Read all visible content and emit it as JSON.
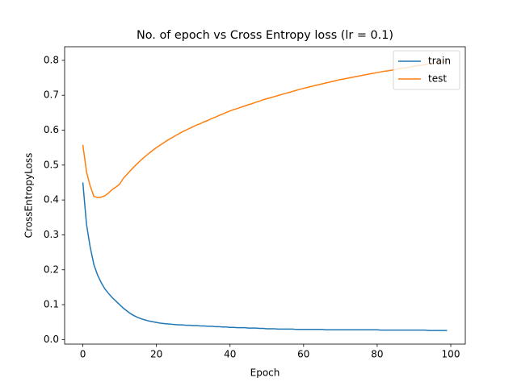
{
  "chart_data": {
    "type": "line",
    "title": "No. of epoch vs Cross Entropy loss (lr = 0.1)",
    "x_label": "Epoch",
    "y_label": "CrossEntropyLoss",
    "x": [
      0,
      1,
      2,
      3,
      4,
      5,
      6,
      7,
      8,
      9,
      10,
      11,
      12,
      13,
      14,
      15,
      16,
      17,
      18,
      19,
      20,
      21,
      22,
      23,
      24,
      25,
      26,
      27,
      28,
      29,
      30,
      31,
      32,
      33,
      34,
      35,
      36,
      37,
      38,
      39,
      40,
      41,
      42,
      43,
      44,
      45,
      46,
      47,
      48,
      49,
      50,
      51,
      52,
      53,
      54,
      55,
      56,
      57,
      58,
      59,
      60,
      61,
      62,
      63,
      64,
      65,
      66,
      67,
      68,
      69,
      70,
      71,
      72,
      73,
      74,
      75,
      76,
      77,
      78,
      79,
      80,
      81,
      82,
      83,
      84,
      85,
      86,
      87,
      88,
      89,
      90,
      91,
      92,
      93,
      94,
      95,
      96,
      97,
      98,
      99
    ],
    "series": [
      {
        "name": "train",
        "color": "#1f77b4",
        "values": [
          0.45,
          0.33,
          0.265,
          0.215,
          0.185,
          0.163,
          0.145,
          0.132,
          0.12,
          0.11,
          0.1,
          0.09,
          0.082,
          0.074,
          0.068,
          0.063,
          0.059,
          0.056,
          0.053,
          0.051,
          0.049,
          0.047,
          0.046,
          0.045,
          0.044,
          0.043,
          0.042,
          0.042,
          0.041,
          0.041,
          0.04,
          0.04,
          0.039,
          0.039,
          0.038,
          0.038,
          0.037,
          0.037,
          0.036,
          0.036,
          0.035,
          0.035,
          0.034,
          0.034,
          0.034,
          0.033,
          0.033,
          0.033,
          0.032,
          0.032,
          0.031,
          0.031,
          0.031,
          0.03,
          0.03,
          0.03,
          0.03,
          0.03,
          0.029,
          0.029,
          0.029,
          0.029,
          0.029,
          0.029,
          0.029,
          0.029,
          0.028,
          0.028,
          0.028,
          0.028,
          0.028,
          0.028,
          0.028,
          0.028,
          0.028,
          0.028,
          0.028,
          0.028,
          0.028,
          0.028,
          0.028,
          0.027,
          0.027,
          0.027,
          0.027,
          0.027,
          0.027,
          0.027,
          0.027,
          0.027,
          0.027,
          0.027,
          0.027,
          0.027,
          0.026,
          0.026,
          0.026,
          0.026,
          0.026,
          0.026
        ]
      },
      {
        "name": "test",
        "color": "#ff7f0e",
        "values": [
          0.558,
          0.48,
          0.44,
          0.41,
          0.407,
          0.408,
          0.412,
          0.42,
          0.43,
          0.437,
          0.445,
          0.462,
          0.473,
          0.485,
          0.496,
          0.506,
          0.516,
          0.525,
          0.534,
          0.542,
          0.55,
          0.557,
          0.564,
          0.571,
          0.577,
          0.583,
          0.589,
          0.595,
          0.6,
          0.605,
          0.61,
          0.615,
          0.619,
          0.624,
          0.628,
          0.633,
          0.637,
          0.642,
          0.646,
          0.651,
          0.655,
          0.659,
          0.662,
          0.666,
          0.669,
          0.673,
          0.676,
          0.68,
          0.683,
          0.687,
          0.69,
          0.693,
          0.696,
          0.699,
          0.702,
          0.705,
          0.708,
          0.711,
          0.714,
          0.717,
          0.72,
          0.7225,
          0.725,
          0.7275,
          0.73,
          0.7325,
          0.735,
          0.7375,
          0.74,
          0.7425,
          0.745,
          0.747,
          0.749,
          0.751,
          0.753,
          0.755,
          0.757,
          0.759,
          0.761,
          0.763,
          0.765,
          0.767,
          0.769,
          0.77,
          0.772,
          0.774,
          0.776,
          0.778,
          0.779,
          0.781,
          0.783,
          0.785,
          0.786,
          0.788,
          0.79,
          0.791,
          0.793,
          0.795,
          0.796,
          0.798
        ]
      }
    ],
    "xlim": [
      -4.95,
      103.95
    ],
    "xticks": [
      0,
      20,
      40,
      60,
      80,
      100
    ],
    "ylim": [
      -0.013,
      0.839
    ],
    "yticks": [
      {
        "value": 0,
        "label": "0.0"
      },
      0.1,
      0.2,
      0.3,
      0.4,
      0.5,
      0.6,
      0.7,
      0.8
    ],
    "legend": "upper right"
  }
}
